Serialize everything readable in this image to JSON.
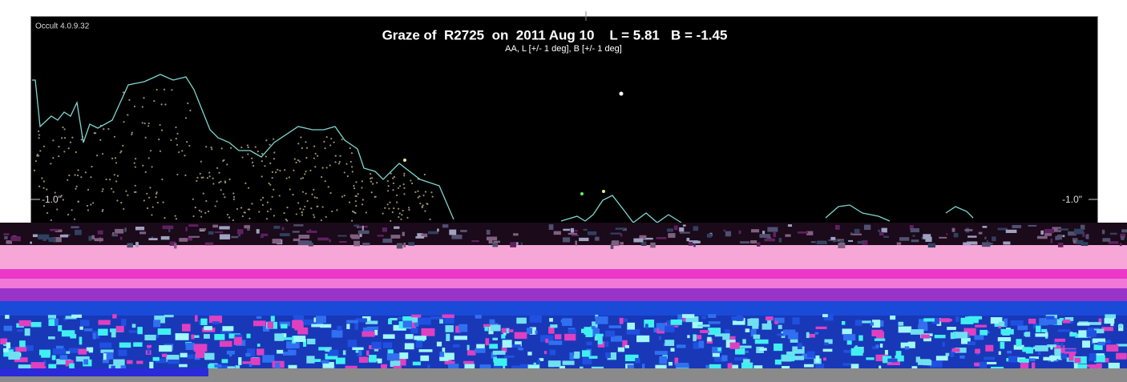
{
  "header": {
    "version": "Occult 4.0.9.32",
    "title": "Graze of  R2725  on  2011 Aug 10    L = 5.81   B = -1.45",
    "subtitle": "AA, L [+/- 1 deg], B [+/- 1 deg]"
  },
  "axis": {
    "left_label": "-1.0\"",
    "right_label": "-1.0\""
  }
}
